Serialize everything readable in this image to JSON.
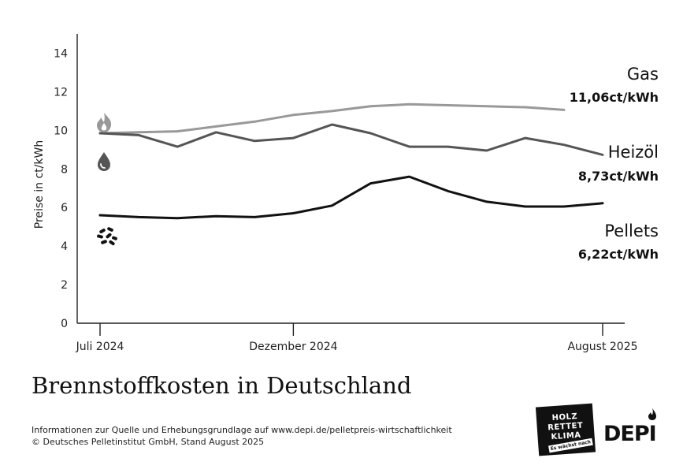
{
  "chart_data": {
    "type": "line",
    "title": "Brennstoffkosten in Deutschland",
    "ylabel": "Preise in ct/kWh",
    "xlabel": "",
    "ylim": [
      0,
      15
    ],
    "yticks": [
      0,
      2,
      4,
      6,
      8,
      10,
      12,
      14
    ],
    "xticks": [
      {
        "label": "Juli 2024",
        "x": 0
      },
      {
        "label": "Dezember 2024",
        "x": 5
      },
      {
        "label": "August 2025",
        "x": 13
      }
    ],
    "x": [
      0,
      1,
      2,
      3,
      4,
      5,
      6,
      7,
      8,
      9,
      10,
      11,
      12,
      13
    ],
    "grid": false,
    "series": [
      {
        "name": "Gas",
        "value_label": "11,06ct/kWh",
        "color": "#999999",
        "icon": "flame-icon",
        "x": [
          0,
          1,
          2,
          3,
          4,
          5,
          6,
          7,
          8,
          9,
          10,
          11,
          12
        ],
        "values": [
          9.85,
          9.9,
          9.95,
          10.2,
          10.45,
          10.8,
          11.0,
          11.25,
          11.35,
          11.3,
          11.25,
          11.2,
          11.06
        ]
      },
      {
        "name": "Heizöl",
        "value_label": "8,73ct/kWh",
        "color": "#555555",
        "icon": "oil-drop-icon",
        "x": [
          0,
          1,
          2,
          3,
          4,
          5,
          6,
          7,
          8,
          9,
          10,
          11,
          12,
          13
        ],
        "values": [
          9.85,
          9.75,
          9.15,
          9.9,
          9.45,
          9.6,
          10.3,
          9.85,
          9.15,
          9.15,
          8.95,
          9.6,
          9.25,
          8.73
        ]
      },
      {
        "name": "Pellets",
        "value_label": "6,22ct/kWh",
        "color": "#111111",
        "icon": "pellets-icon",
        "x": [
          0,
          1,
          2,
          3,
          4,
          5,
          6,
          7,
          8,
          9,
          10,
          11,
          12,
          13
        ],
        "values": [
          5.6,
          5.5,
          5.45,
          5.55,
          5.5,
          5.7,
          6.1,
          7.25,
          7.6,
          6.85,
          6.3,
          6.05,
          6.05,
          6.22
        ]
      }
    ]
  },
  "footer": {
    "source_line": "Informationen zur Quelle und Erhebungsgrundlage auf www.depi.de/pelletpreis-wirtschaftlichkeit",
    "copyright_line": "© Deutsches Pelletinstitut GmbH, Stand August 2025"
  },
  "logos": {
    "badge_lines": [
      "HOLZ",
      "RETTET",
      "KLIMA"
    ],
    "badge_tagline": "Es wächst nach",
    "depi": "DEPI"
  }
}
